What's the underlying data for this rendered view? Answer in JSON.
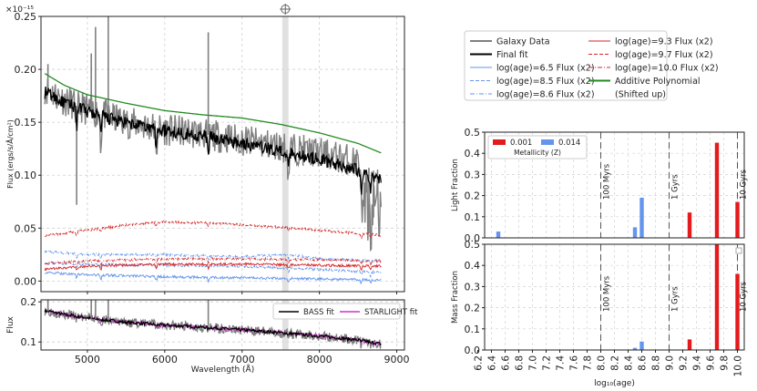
{
  "chart_data": [
    {
      "type": "line",
      "id": "spectrum",
      "ylabel": "Flux (ergs/s/Å/cm²)",
      "exponent_label": "×10⁻¹⁵",
      "xlim": [
        4400,
        9100
      ],
      "ylim": [
        -0.01,
        0.25
      ],
      "y_ticks": [
        0.0,
        0.05,
        0.1,
        0.15,
        0.2,
        0.25
      ],
      "y_tick_labels": [
        "0.00",
        "0.05",
        "0.10",
        "0.15",
        "0.20",
        "0.25"
      ],
      "x_ticks": [
        5000,
        6000,
        7000,
        8000,
        9000
      ],
      "masked_band": [
        7520,
        7600
      ],
      "masked_band_icon": "crosshair-icon",
      "x_range": [
        4450,
        8800
      ],
      "series": [
        {
          "name": "Galaxy Data",
          "color": "#808080",
          "style": "solid",
          "anchors": [
            [
              4450,
              0.182
            ],
            [
              4500,
              0.18
            ],
            [
              4700,
              0.171
            ],
            [
              4850,
              0.166
            ],
            [
              5000,
              0.162
            ],
            [
              5500,
              0.15
            ],
            [
              6000,
              0.143
            ],
            [
              6500,
              0.139
            ],
            [
              7000,
              0.133
            ],
            [
              7500,
              0.127
            ],
            [
              8000,
              0.121
            ],
            [
              8500,
              0.113
            ],
            [
              8800,
              0.1
            ]
          ]
        },
        {
          "name": "Final fit",
          "color": "#000000",
          "style": "solid",
          "anchors": [
            [
              4450,
              0.178
            ],
            [
              4500,
              0.177
            ],
            [
              4700,
              0.168
            ],
            [
              4850,
              0.165
            ],
            [
              5000,
              0.16
            ],
            [
              5500,
              0.149
            ],
            [
              6000,
              0.142
            ],
            [
              6500,
              0.137
            ],
            [
              7000,
              0.13
            ],
            [
              7500,
              0.123
            ],
            [
              8000,
              0.115
            ],
            [
              8500,
              0.105
            ],
            [
              8800,
              0.095
            ]
          ]
        },
        {
          "name": "log(age)=6.5 Flux (x2)",
          "color": "#6495ed",
          "style": "solid",
          "anchors": [
            [
              4450,
              0.008
            ],
            [
              5000,
              0.006
            ],
            [
              6000,
              0.004
            ],
            [
              7000,
              0.003
            ],
            [
              8000,
              0.002
            ],
            [
              8800,
              0.001
            ]
          ]
        },
        {
          "name": "log(age)=8.5 Flux (x2)",
          "color": "#6495ed",
          "style": "dashed",
          "anchors": [
            [
              4450,
              0.017
            ],
            [
              5000,
              0.016
            ],
            [
              6000,
              0.015
            ],
            [
              7000,
              0.014
            ],
            [
              8000,
              0.011
            ],
            [
              8800,
              0.008
            ]
          ]
        },
        {
          "name": "log(age)=8.6 Flux (x2)",
          "color": "#6495ed",
          "style": "dashdot",
          "anchors": [
            [
              4450,
              0.028
            ],
            [
              5000,
              0.025
            ],
            [
              6000,
              0.025
            ],
            [
              7000,
              0.023
            ],
            [
              7600,
              0.025
            ],
            [
              8000,
              0.021
            ],
            [
              8800,
              0.019
            ]
          ]
        },
        {
          "name": "log(age)=9.3 Flux (x2)",
          "color": "#d62728",
          "style": "solid",
          "anchors": [
            [
              4450,
              0.011
            ],
            [
              5000,
              0.014
            ],
            [
              6000,
              0.016
            ],
            [
              7000,
              0.016
            ],
            [
              8000,
              0.015
            ],
            [
              8800,
              0.014
            ]
          ]
        },
        {
          "name": "log(age)=9.7 Flux (x2)",
          "color": "#d62728",
          "style": "dashed",
          "anchors": [
            [
              4450,
              0.043
            ],
            [
              5000,
              0.048
            ],
            [
              5500,
              0.053
            ],
            [
              6000,
              0.056
            ],
            [
              6500,
              0.055
            ],
            [
              7000,
              0.053
            ],
            [
              7500,
              0.051
            ],
            [
              8000,
              0.048
            ],
            [
              8500,
              0.045
            ],
            [
              8800,
              0.043
            ]
          ]
        },
        {
          "name": "log(age)=10.0 Flux (x2)",
          "color": "#d62728",
          "style": "dashdot",
          "anchors": [
            [
              4450,
              0.017
            ],
            [
              5000,
              0.019
            ],
            [
              6000,
              0.021
            ],
            [
              7000,
              0.021
            ],
            [
              8000,
              0.02
            ],
            [
              8800,
              0.019
            ]
          ]
        },
        {
          "name": "Additive Polynomial (Shifted up)",
          "color": "#228b22",
          "style": "solid",
          "anchors": [
            [
              4450,
              0.196
            ],
            [
              4700,
              0.185
            ],
            [
              5000,
              0.176
            ],
            [
              5500,
              0.168
            ],
            [
              6000,
              0.161
            ],
            [
              6500,
              0.157
            ],
            [
              7000,
              0.154
            ],
            [
              7500,
              0.148
            ],
            [
              8000,
              0.14
            ],
            [
              8500,
              0.13
            ],
            [
              8800,
              0.121
            ]
          ]
        }
      ],
      "spikes": [
        {
          "x": 4861,
          "y": 0.072,
          "label_hidden": true
        },
        {
          "x": 4490,
          "y": 0.205
        },
        {
          "x": 5050,
          "y": 0.215
        },
        {
          "x": 5105,
          "y": 0.24
        },
        {
          "x": 5270,
          "y": 0.25
        },
        {
          "x": 6563,
          "y": 0.235
        },
        {
          "x": 7890,
          "y": 0.13
        },
        {
          "x": 8640,
          "y": 0.045
        },
        {
          "x": 8700,
          "y": 0.06
        }
      ],
      "legend": {
        "placement": "outside-right",
        "entries": [
          [
            "Galaxy Data",
            "log(age)=9.3 Flux (x2)"
          ],
          [
            "Final fit",
            "log(age)=9.7 Flux (x2)"
          ],
          [
            "log(age)=6.5 Flux (x2)",
            "log(age)=10.0 Flux (x2)"
          ],
          [
            "log(age)=8.5 Flux (x2)",
            "Additive Polynomial"
          ],
          [
            "log(age)=8.6 Flux (x2)",
            "(Shifted up)"
          ]
        ]
      }
    },
    {
      "type": "line",
      "id": "comparison",
      "ylabel": "Flux",
      "xlabel": "Wavelength (Å)",
      "xlim": [
        4400,
        9100
      ],
      "ylim": [
        0.08,
        0.205
      ],
      "y_ticks": [
        0.1,
        0.2
      ],
      "y_tick_labels": [
        "0.1",
        "0.2"
      ],
      "x_ticks": [
        5000,
        6000,
        7000,
        8000,
        9000
      ],
      "x_tick_labels": [
        "5000",
        "6000",
        "7000",
        "8000",
        "9000"
      ],
      "legend": {
        "placement": "top-right",
        "entries": [
          "BASS fit",
          "STARLIGHT fit"
        ]
      },
      "series": [
        {
          "name": "Galaxy Data",
          "color": "#808080"
        },
        {
          "name": "BASS fit",
          "color": "#000000"
        },
        {
          "name": "STARLIGHT fit",
          "color": "#cc33cc"
        }
      ]
    },
    {
      "type": "bar",
      "id": "light-fraction",
      "ylabel": "Light Fraction",
      "xlim": [
        6.3,
        10.1
      ],
      "ylim": [
        0.0,
        0.5
      ],
      "y_ticks": [
        0.0,
        0.1,
        0.2,
        0.3,
        0.4,
        0.5
      ],
      "y_tick_labels": [
        "0.0",
        "0.1",
        "0.2",
        "0.3",
        "0.4",
        "0.5"
      ],
      "markers": [
        {
          "x": 8.0,
          "label": "100 Myrs"
        },
        {
          "x": 9.0,
          "label": "1 Gyrs"
        },
        {
          "x": 10.0,
          "label": "10 Gyrs"
        }
      ],
      "legend": {
        "placement": "top-left",
        "title": "Metallicity (Z)",
        "entries": [
          "0.001",
          "0.014"
        ]
      },
      "series": [
        {
          "name": "0.001",
          "color": "#e41a1c",
          "points": [
            [
              9.3,
              0.12
            ],
            [
              9.7,
              0.45
            ],
            [
              10.0,
              0.17
            ]
          ]
        },
        {
          "name": "0.014",
          "color": "#6495ed",
          "points": [
            [
              6.5,
              0.03
            ],
            [
              8.5,
              0.05
            ],
            [
              8.6,
              0.19
            ]
          ]
        }
      ]
    },
    {
      "type": "bar",
      "id": "mass-fraction",
      "ylabel": "Mass Fraction",
      "xlabel": "log₁₀(age)",
      "xlim": [
        6.3,
        10.1
      ],
      "ylim": [
        0.0,
        0.5
      ],
      "y_ticks": [
        0.0,
        0.1,
        0.2,
        0.3,
        0.4,
        0.5
      ],
      "y_tick_labels": [
        "0.0",
        "0.1",
        "0.2",
        "0.3",
        "0.4",
        "0.5"
      ],
      "x_ticks": [
        6.2,
        6.4,
        6.6,
        6.8,
        7.0,
        7.2,
        7.4,
        7.6,
        7.8,
        8.0,
        8.2,
        8.4,
        8.6,
        8.8,
        9.0,
        9.2,
        9.4,
        9.6,
        9.8,
        10.0
      ],
      "x_tick_labels": [
        "6.2",
        "6.4",
        "6.6",
        "6.8",
        "7.0",
        "7.2",
        "7.4",
        "7.6",
        "7.8",
        "8.0",
        "8.2",
        "8.4",
        "8.6",
        "8.8",
        "9.0",
        "9.2",
        "9.4",
        "9.6",
        "9.8",
        "10.0"
      ],
      "markers": [
        {
          "x": 8.0,
          "label": "100 Myrs"
        },
        {
          "x": 9.0,
          "label": "1 Gyrs"
        },
        {
          "x": 10.0,
          "label": "10 Gyrs"
        }
      ],
      "series": [
        {
          "name": "0.001",
          "color": "#e41a1c",
          "points": [
            [
              9.3,
              0.05
            ],
            [
              9.7,
              0.5
            ],
            [
              10.0,
              0.36
            ]
          ]
        },
        {
          "name": "0.014",
          "color": "#6495ed",
          "points": [
            [
              8.5,
              0.01
            ],
            [
              8.6,
              0.04
            ]
          ]
        }
      ]
    }
  ]
}
